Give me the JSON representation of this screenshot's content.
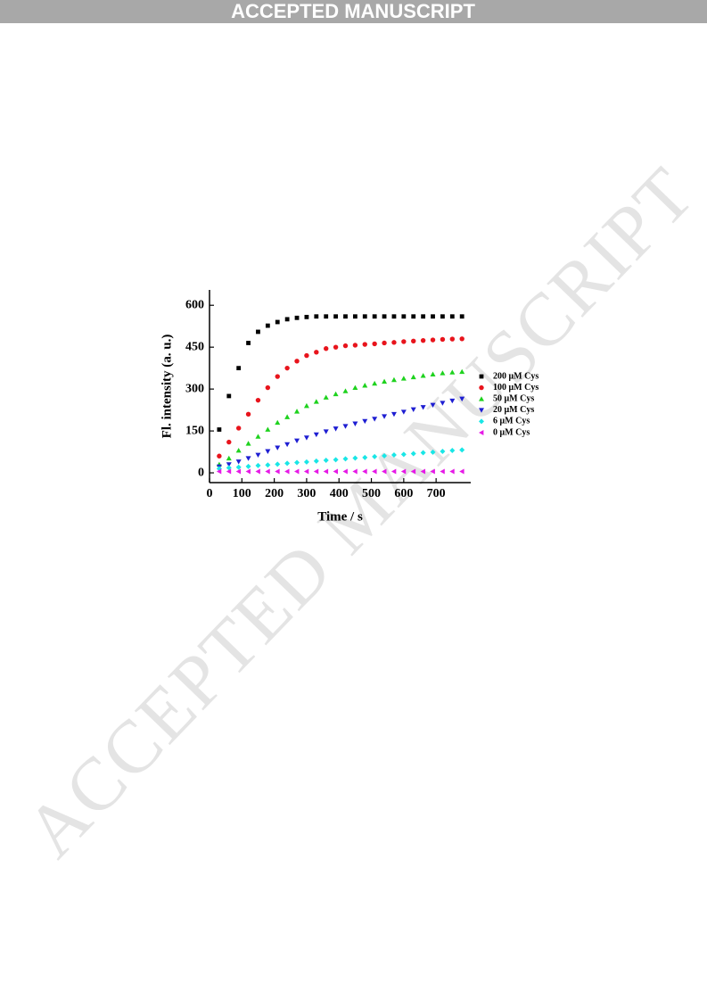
{
  "banner": "ACCEPTED MANUSCRIPT",
  "watermark": "ACCEPTED MANUSCRIPT",
  "chart_data": {
    "type": "scatter",
    "xlabel": "Time / s",
    "ylabel": "Fl. intensity (a. u.)",
    "xlim": [
      0,
      807
    ],
    "ylim": [
      -35,
      655
    ],
    "xticks": [
      0,
      100,
      200,
      300,
      400,
      500,
      600,
      700
    ],
    "yticks": [
      0,
      150,
      300,
      450,
      600
    ],
    "x": [
      30,
      60,
      90,
      120,
      150,
      180,
      210,
      240,
      270,
      300,
      330,
      360,
      390,
      420,
      450,
      480,
      510,
      540,
      570,
      600,
      630,
      660,
      690,
      720,
      750,
      780
    ],
    "series": [
      {
        "name": "200 μM Cys",
        "color": "#000000",
        "marker": "square",
        "values": [
          155,
          275,
          375,
          465,
          505,
          527,
          540,
          550,
          555,
          558,
          560,
          560,
          560,
          560,
          560,
          560,
          560,
          560,
          560,
          560,
          560,
          560,
          560,
          560,
          560,
          560
        ]
      },
      {
        "name": "100 μM Cys",
        "color": "#e8141c",
        "marker": "circle",
        "values": [
          60,
          110,
          160,
          210,
          260,
          305,
          345,
          375,
          400,
          420,
          432,
          445,
          450,
          455,
          457,
          460,
          462,
          465,
          467,
          470,
          472,
          474,
          476,
          478,
          479,
          480
        ]
      },
      {
        "name": "50 μM Cys",
        "color": "#1ed21e",
        "marker": "triangle-up",
        "values": [
          30,
          52,
          80,
          105,
          130,
          155,
          180,
          200,
          220,
          240,
          255,
          270,
          282,
          293,
          305,
          313,
          320,
          327,
          333,
          338,
          343,
          348,
          353,
          357,
          360,
          362
        ]
      },
      {
        "name": "20 μM Cys",
        "color": "#1e1ed2",
        "marker": "triangle-down",
        "values": [
          22,
          30,
          40,
          52,
          64,
          77,
          90,
          102,
          115,
          126,
          137,
          148,
          158,
          167,
          176,
          185,
          193,
          202,
          210,
          218,
          227,
          235,
          243,
          250,
          258,
          265
        ]
      },
      {
        "name": "6 μM Cys",
        "color": "#19e6e6",
        "marker": "diamond",
        "values": [
          15,
          18,
          20,
          23,
          26,
          28,
          31,
          34,
          37,
          39,
          42,
          45,
          47,
          50,
          53,
          55,
          58,
          61,
          64,
          66,
          69,
          72,
          74,
          77,
          80,
          82
        ]
      },
      {
        "name": "0 μM Cys",
        "color": "#e619e6",
        "marker": "triangle-left",
        "values": [
          5,
          5,
          5,
          5,
          5,
          5,
          5,
          5,
          5,
          5,
          5,
          5,
          5,
          5,
          5,
          5,
          5,
          5,
          5,
          5,
          5,
          5,
          5,
          5,
          5,
          5
        ]
      }
    ]
  }
}
